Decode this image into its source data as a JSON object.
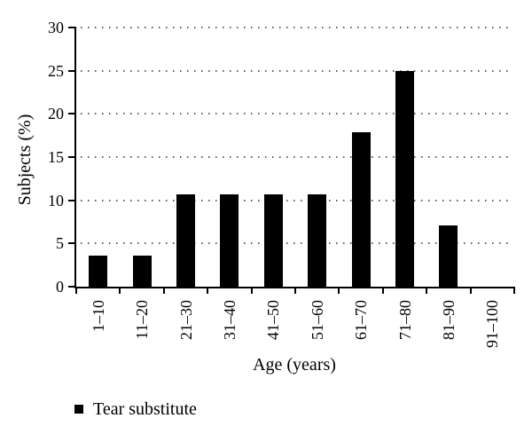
{
  "figure": {
    "background": "#ffffff"
  },
  "chart_data": {
    "type": "bar",
    "title": "",
    "xlabel": "Age (years)",
    "ylabel": "Subjects (%)",
    "categories": [
      "1–10",
      "11–20",
      "21–30",
      "31–40",
      "41–50",
      "51–60",
      "61–70",
      "71–80",
      "81–90",
      "91–100"
    ],
    "series": [
      {
        "name": "Tear substitute",
        "values": [
          3.6,
          3.6,
          10.7,
          10.7,
          10.7,
          10.7,
          17.9,
          25,
          7.1,
          0
        ]
      }
    ],
    "ylim": [
      0,
      30
    ],
    "yticks": [
      0,
      5,
      10,
      15,
      20,
      25,
      30
    ],
    "grid": "horizontal-dotted",
    "legend": {
      "position": "bottom-left",
      "items": [
        {
          "label": "Tear substitute",
          "marker": "square",
          "color": "#000000"
        }
      ]
    },
    "colors": {
      "bar": "#000000",
      "axis": "#000000",
      "grid_dot": "#5f5f5f",
      "text": "#000000"
    }
  }
}
